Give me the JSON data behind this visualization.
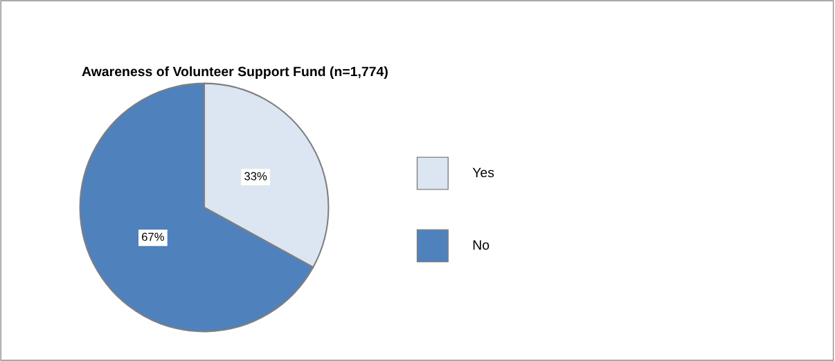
{
  "chart_data": {
    "type": "pie",
    "title": "Awareness of Volunteer Support Fund (n=1,774)",
    "categories": [
      "Yes",
      "No"
    ],
    "values": [
      33,
      67
    ],
    "colors": [
      "#dce6f2",
      "#4f81bd"
    ],
    "value_labels": [
      "33%",
      "67%"
    ],
    "legend": "right"
  }
}
